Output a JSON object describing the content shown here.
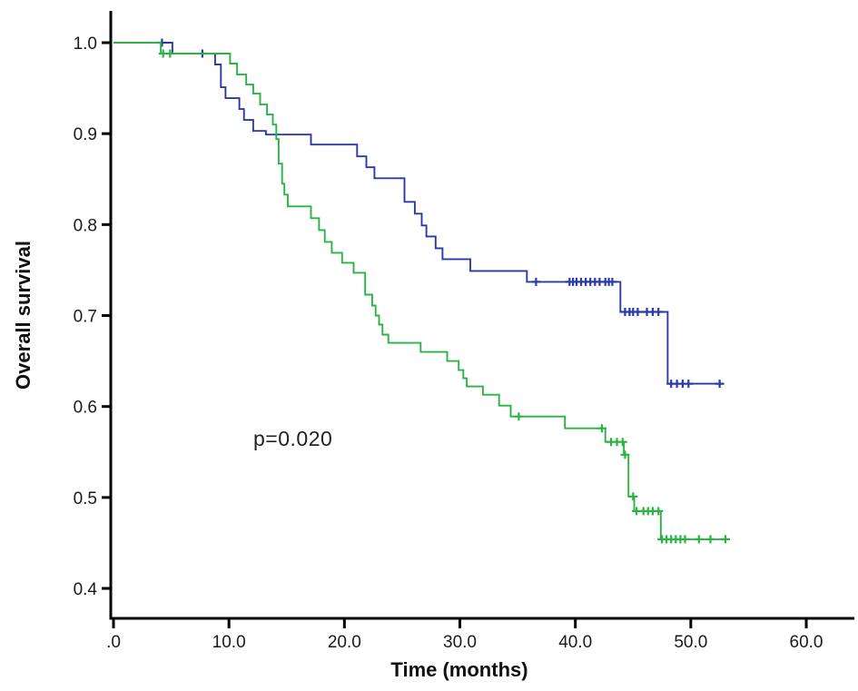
{
  "figure": {
    "y_axis_title": "Overall survival",
    "x_axis_title": "Time (months)",
    "p_value_text": "p=0.020"
  },
  "chart_data": {
    "type": "line",
    "subtype": "kaplan-meier-step-survival",
    "title": "",
    "xlabel": "Time (months)",
    "ylabel": "Overall survival",
    "grid": false,
    "legend": "none",
    "xlim": [
      -0.25,
      64.2
    ],
    "ylim": [
      0.367,
      1.035
    ],
    "x_ticks": {
      "values": [
        0,
        10,
        20,
        30,
        40,
        50,
        60
      ],
      "labels": [
        ".0",
        "10.0",
        "20.0",
        "30.0",
        "40.0",
        "50.0",
        "60.0"
      ]
    },
    "y_ticks": {
      "values": [
        1.0,
        0.9,
        0.8,
        0.7,
        0.6,
        0.5,
        0.4
      ],
      "labels": [
        "1.0",
        "0.9",
        "0.8",
        "0.7",
        "0.6",
        "0.5",
        "0.4"
      ]
    },
    "annotation": {
      "text": "p=0.020",
      "x_months": 12.2,
      "y_survival": 0.558
    },
    "series": [
      {
        "name": "series-1-blue",
        "color": "#2b3aab",
        "steps": [
          [
            0,
            1.0
          ],
          [
            5.1,
            0.988
          ],
          [
            8.8,
            0.976
          ],
          [
            9.3,
            0.951
          ],
          [
            9.7,
            0.939
          ],
          [
            10.9,
            0.927
          ],
          [
            11.3,
            0.915
          ],
          [
            12.1,
            0.903
          ],
          [
            13.2,
            0.899
          ],
          [
            17.1,
            0.888
          ],
          [
            21.1,
            0.875
          ],
          [
            21.9,
            0.863
          ],
          [
            22.6,
            0.851
          ],
          [
            25.2,
            0.825
          ],
          [
            26.1,
            0.812
          ],
          [
            26.7,
            0.799
          ],
          [
            27.1,
            0.787
          ],
          [
            27.9,
            0.774
          ],
          [
            28.5,
            0.762
          ],
          [
            30.9,
            0.749
          ],
          [
            35.8,
            0.737
          ],
          [
            43.9,
            0.704
          ],
          [
            48.0,
            0.625
          ]
        ],
        "end_time": 52.8,
        "censors": [
          [
            4.2,
            1.0
          ],
          [
            7.7,
            0.988
          ],
          [
            36.6,
            0.737
          ],
          [
            39.5,
            0.737
          ],
          [
            39.8,
            0.737
          ],
          [
            40.1,
            0.737
          ],
          [
            40.5,
            0.737
          ],
          [
            40.9,
            0.737
          ],
          [
            41.3,
            0.737
          ],
          [
            41.7,
            0.737
          ],
          [
            42.1,
            0.737
          ],
          [
            42.6,
            0.737
          ],
          [
            42.9,
            0.737
          ],
          [
            43.2,
            0.737
          ],
          [
            44.3,
            0.704
          ],
          [
            44.7,
            0.704
          ],
          [
            45.0,
            0.704
          ],
          [
            45.4,
            0.704
          ],
          [
            46.2,
            0.704
          ],
          [
            46.7,
            0.704
          ],
          [
            47.2,
            0.704
          ],
          [
            48.3,
            0.625
          ],
          [
            48.8,
            0.625
          ],
          [
            49.3,
            0.625
          ],
          [
            49.8,
            0.625
          ],
          [
            52.5,
            0.625
          ]
        ]
      },
      {
        "name": "series-2-green",
        "color": "#2cb245",
        "steps": [
          [
            0,
            1.0
          ],
          [
            4.1,
            0.988
          ],
          [
            10.1,
            0.977
          ],
          [
            10.7,
            0.965
          ],
          [
            11.5,
            0.954
          ],
          [
            12.1,
            0.944
          ],
          [
            12.7,
            0.932
          ],
          [
            13.3,
            0.921
          ],
          [
            13.8,
            0.91
          ],
          [
            14.1,
            0.894
          ],
          [
            14.3,
            0.867
          ],
          [
            14.6,
            0.845
          ],
          [
            14.8,
            0.833
          ],
          [
            15.1,
            0.82
          ],
          [
            17.1,
            0.807
          ],
          [
            17.8,
            0.794
          ],
          [
            18.3,
            0.781
          ],
          [
            18.9,
            0.769
          ],
          [
            19.8,
            0.758
          ],
          [
            20.8,
            0.747
          ],
          [
            21.8,
            0.723
          ],
          [
            22.4,
            0.711
          ],
          [
            22.7,
            0.7
          ],
          [
            23.0,
            0.69
          ],
          [
            23.3,
            0.679
          ],
          [
            23.8,
            0.67
          ],
          [
            26.6,
            0.66
          ],
          [
            28.9,
            0.65
          ],
          [
            29.9,
            0.64
          ],
          [
            30.3,
            0.631
          ],
          [
            30.6,
            0.622
          ],
          [
            32.0,
            0.613
          ],
          [
            33.4,
            0.601
          ],
          [
            34.4,
            0.589
          ],
          [
            39.1,
            0.576
          ],
          [
            42.6,
            0.561
          ],
          [
            44.2,
            0.547
          ],
          [
            44.6,
            0.501
          ],
          [
            45.1,
            0.485
          ],
          [
            47.4,
            0.454
          ]
        ],
        "end_time": 53.2,
        "censors": [
          [
            4.3,
            0.988
          ],
          [
            4.9,
            0.988
          ],
          [
            35.1,
            0.589
          ],
          [
            42.3,
            0.576
          ],
          [
            43.1,
            0.561
          ],
          [
            43.6,
            0.561
          ],
          [
            44.1,
            0.561
          ],
          [
            44.3,
            0.547
          ],
          [
            45.0,
            0.501
          ],
          [
            45.3,
            0.485
          ],
          [
            45.9,
            0.485
          ],
          [
            46.3,
            0.485
          ],
          [
            46.7,
            0.485
          ],
          [
            47.2,
            0.485
          ],
          [
            47.5,
            0.454
          ],
          [
            47.9,
            0.454
          ],
          [
            48.3,
            0.454
          ],
          [
            48.7,
            0.454
          ],
          [
            49.1,
            0.454
          ],
          [
            49.5,
            0.454
          ],
          [
            50.7,
            0.454
          ],
          [
            51.7,
            0.454
          ],
          [
            53.0,
            0.454
          ]
        ]
      }
    ]
  }
}
